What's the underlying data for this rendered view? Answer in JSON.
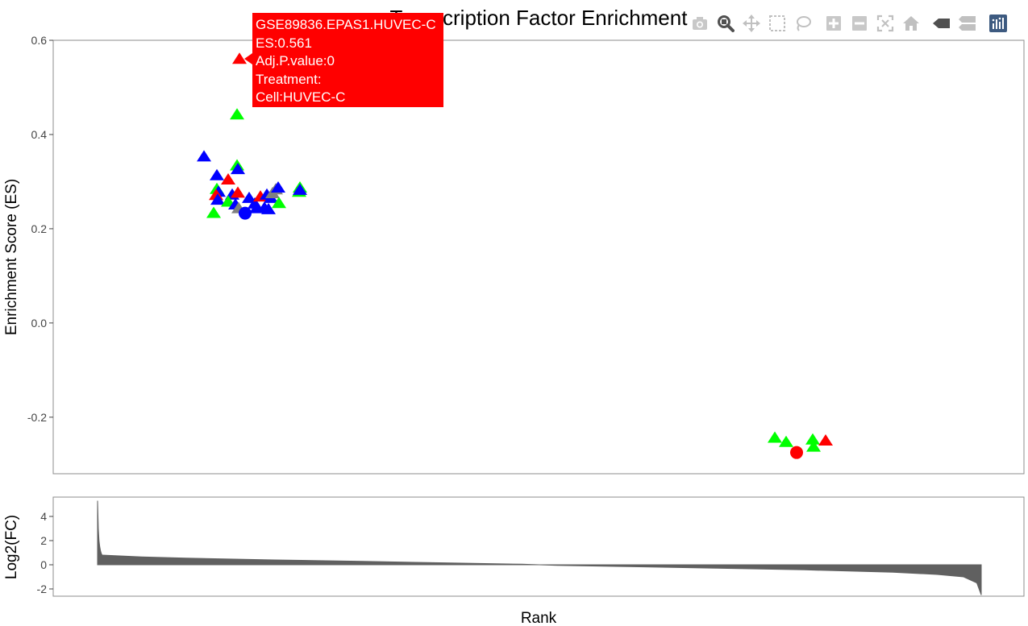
{
  "chart_data": [
    {
      "type": "scatter",
      "title": "Transcription Factor Enrichment",
      "xlabel": "",
      "ylabel": "Enrichment Score (ES)",
      "ylim": [
        -0.32,
        0.6
      ],
      "yticks": [
        0.6,
        0.4,
        0.2,
        0.0,
        -0.2
      ],
      "ytick_labels": [
        "0.6",
        "0.4",
        "0.2",
        "0.0",
        "-0.2"
      ],
      "grid": false,
      "colors": {
        "red": "#ff0000",
        "green": "#00ff00",
        "blue": "#0000ff",
        "gray": "#808080"
      },
      "points": [
        {
          "x": 253,
          "y": 0.354,
          "color": "blue",
          "symbol": "triangle"
        },
        {
          "x": 297,
          "y": 0.561,
          "color": "red",
          "symbol": "triangle"
        },
        {
          "x": 294,
          "y": 0.443,
          "color": "green",
          "symbol": "triangle"
        },
        {
          "x": 269,
          "y": 0.314,
          "color": "blue",
          "symbol": "triangle"
        },
        {
          "x": 294,
          "y": 0.335,
          "color": "green",
          "symbol": "triangle"
        },
        {
          "x": 295,
          "y": 0.327,
          "color": "blue",
          "symbol": "triangle"
        },
        {
          "x": 283,
          "y": 0.305,
          "color": "red",
          "symbol": "triangle"
        },
        {
          "x": 269,
          "y": 0.285,
          "color": "green",
          "symbol": "triangle"
        },
        {
          "x": 271,
          "y": 0.279,
          "color": "blue",
          "symbol": "triangle"
        },
        {
          "x": 268,
          "y": 0.272,
          "color": "red",
          "symbol": "triangle"
        },
        {
          "x": 270,
          "y": 0.262,
          "color": "blue",
          "symbol": "triangle"
        },
        {
          "x": 288,
          "y": 0.273,
          "color": "blue",
          "symbol": "triangle"
        },
        {
          "x": 295,
          "y": 0.277,
          "color": "red",
          "symbol": "triangle"
        },
        {
          "x": 283,
          "y": 0.258,
          "color": "green",
          "symbol": "triangle"
        },
        {
          "x": 265,
          "y": 0.234,
          "color": "green",
          "symbol": "triangle"
        },
        {
          "x": 292,
          "y": 0.252,
          "color": "blue",
          "symbol": "triangle"
        },
        {
          "x": 296,
          "y": 0.244,
          "color": "gray",
          "symbol": "triangle"
        },
        {
          "x": 304,
          "y": 0.233,
          "color": "blue",
          "symbol": "circle"
        },
        {
          "x": 309,
          "y": 0.266,
          "color": "blue",
          "symbol": "triangle"
        },
        {
          "x": 316,
          "y": 0.254,
          "color": "blue",
          "symbol": "triangle"
        },
        {
          "x": 323,
          "y": 0.269,
          "color": "red",
          "symbol": "triangle"
        },
        {
          "x": 318,
          "y": 0.244,
          "color": "blue",
          "symbol": "triangle"
        },
        {
          "x": 328,
          "y": 0.245,
          "color": "blue",
          "symbol": "triangle"
        },
        {
          "x": 333,
          "y": 0.242,
          "color": "blue",
          "symbol": "triangle"
        },
        {
          "x": 331,
          "y": 0.273,
          "color": "blue",
          "symbol": "triangle"
        },
        {
          "x": 336,
          "y": 0.266,
          "color": "blue",
          "symbol": "triangle"
        },
        {
          "x": 338,
          "y": 0.276,
          "color": "gray",
          "symbol": "triangle"
        },
        {
          "x": 342,
          "y": 0.284,
          "color": "gray",
          "symbol": "triangle"
        },
        {
          "x": 345,
          "y": 0.288,
          "color": "blue",
          "symbol": "triangle"
        },
        {
          "x": 346,
          "y": 0.255,
          "color": "green",
          "symbol": "triangle"
        },
        {
          "x": 372,
          "y": 0.288,
          "color": "green",
          "symbol": "triangle"
        },
        {
          "x": 371,
          "y": 0.279,
          "color": "green",
          "symbol": "triangle"
        },
        {
          "x": 372,
          "y": 0.283,
          "color": "blue",
          "symbol": "triangle"
        },
        {
          "x": 961,
          "y": -0.243,
          "color": "green",
          "symbol": "triangle"
        },
        {
          "x": 975,
          "y": -0.252,
          "color": "green",
          "symbol": "triangle"
        },
        {
          "x": 988,
          "y": -0.275,
          "color": "red",
          "symbol": "circle"
        },
        {
          "x": 1008,
          "y": -0.247,
          "color": "green",
          "symbol": "triangle"
        },
        {
          "x": 1009,
          "y": -0.262,
          "color": "green",
          "symbol": "triangle"
        },
        {
          "x": 1024,
          "y": -0.249,
          "color": "red",
          "symbol": "triangle"
        }
      ]
    },
    {
      "type": "area",
      "xlabel": "Rank",
      "ylabel": "Log2(FC)",
      "ylim": [
        -2.6,
        5.6
      ],
      "yticks": [
        4,
        2,
        0,
        -2
      ],
      "ytick_labels": [
        "4",
        "2",
        "0",
        "-2"
      ],
      "fill_color": "#606060",
      "x_range": [
        0,
        1
      ],
      "head_values": [
        5.3,
        3.0,
        2.0,
        1.5,
        1.15,
        0.95,
        0.82
      ],
      "x": [
        0.005,
        0.05,
        0.1,
        0.2,
        0.3,
        0.4,
        0.48,
        0.52,
        0.6,
        0.7,
        0.8,
        0.9,
        0.95,
        0.98,
        0.995,
        1.0
      ],
      "values": [
        0.8,
        0.65,
        0.55,
        0.4,
        0.28,
        0.15,
        0.05,
        -0.05,
        -0.15,
        -0.28,
        -0.42,
        -0.62,
        -0.8,
        -1.0,
        -1.5,
        -2.5
      ]
    }
  ],
  "tooltip": {
    "lines": [
      "GSE89836.EPAS1.HUVEC-C",
      "ES:0.561",
      "Adj.P.value:0",
      "Treatment:",
      "Cell:HUVEC-C"
    ],
    "background": "#ff0000"
  },
  "modebar": {
    "icons": [
      "camera-icon",
      "zoom-icon",
      "pan-icon",
      "box-select-icon",
      "lasso-icon",
      "zoom-in-icon",
      "zoom-out-icon",
      "autoscale-icon",
      "reset-axes-icon",
      "hover-closest-icon",
      "hover-compare-icon",
      "plotly-logo-icon"
    ]
  }
}
